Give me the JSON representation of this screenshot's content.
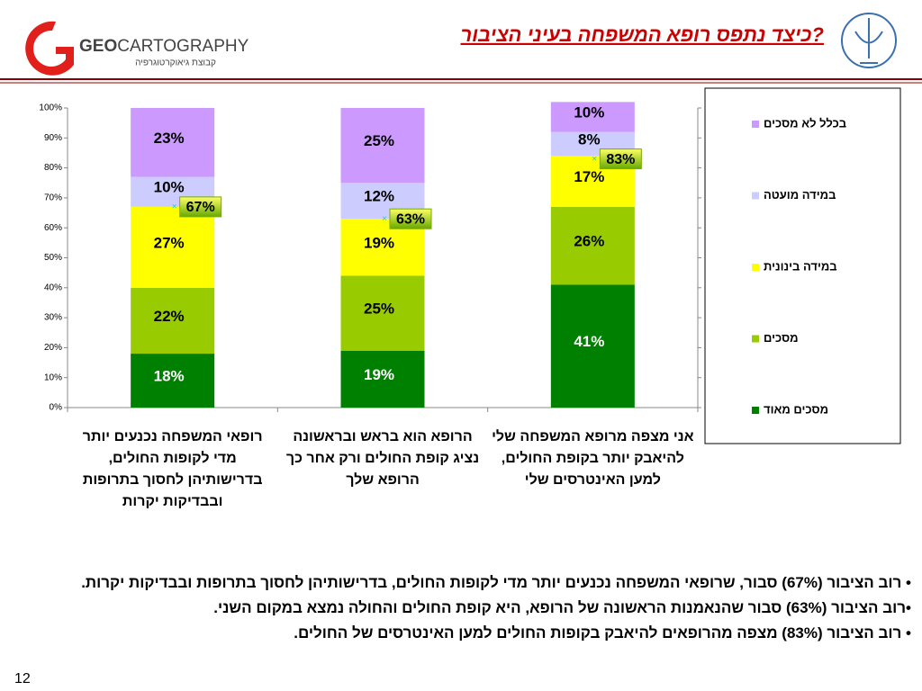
{
  "header": {
    "title": "כיצד נתפס רופא המשפחה בעיני הציבור?",
    "logo_name_bold": "GEO",
    "logo_name": "CARTOGRAPHY",
    "logo_subtitle": "קבוצת גיאוקרטוגרפיה"
  },
  "chart_data": {
    "type": "stacked_bar",
    "categories": [
      "רופאי המשפחה נכנעים יותר מדי לקופות החולים, בדרישותיהן לחסוך בתרופות ובבדיקות יקרות",
      "הרופא הוא בראש ובראשונה נציג קופת החולים ורק אחר כך הרופא שלך",
      "אני מצפה מרופא המשפחה שלי להיאבק יותר בקופת החולים, למען האינטרסים שלי"
    ],
    "series": [
      {
        "name": "מסכים מאוד",
        "color": "#008000",
        "values": [
          18,
          19,
          41
        ],
        "value_labels": [
          "18%",
          "19%",
          "41%"
        ]
      },
      {
        "name": "מסכים",
        "color": "#99cc00",
        "values": [
          22,
          25,
          26
        ],
        "value_labels": [
          "22%",
          "25%",
          "26%"
        ]
      },
      {
        "name": "במידה בינונית",
        "color": "#ffff00",
        "values": [
          27,
          19,
          17
        ],
        "value_labels": [
          "27%",
          "19%",
          "17%"
        ]
      },
      {
        "name": "במידה מועטה",
        "color": "#ccccff",
        "values": [
          10,
          12,
          8
        ],
        "value_labels": [
          "10%",
          "12%",
          "8%"
        ]
      },
      {
        "name": "בכלל לא מסכים",
        "color": "#cc99ff",
        "values": [
          23,
          25,
          10
        ],
        "value_labels": [
          "23%",
          "25%",
          "10%"
        ]
      }
    ],
    "markers": {
      "values": [
        67,
        63,
        83
      ],
      "value_labels": [
        "67%",
        "63%",
        "83%"
      ]
    },
    "ylim": [
      0,
      100
    ],
    "yticks": [
      {
        "value": 0,
        "label": "0%"
      },
      {
        "value": 10,
        "label": "10%"
      },
      {
        "value": 20,
        "label": "20%"
      },
      {
        "value": 30,
        "label": "30%"
      },
      {
        "value": 40,
        "label": "40%"
      },
      {
        "value": 50,
        "label": "50%"
      },
      {
        "value": 60,
        "label": "60%"
      },
      {
        "value": 70,
        "label": "70%"
      },
      {
        "value": 80,
        "label": "80%"
      },
      {
        "value": 90,
        "label": "90%"
      },
      {
        "value": 100,
        "label": "100%"
      }
    ],
    "legend": "right"
  },
  "bullets": [
    "• רוב הציבור (67%) סבור, שרופאי המשפחה נכנעים יותר מדי לקופות החולים, בדרישותיהן לחסוך בתרופות ובבדיקות יקרות.",
    "•רוב הציבור (63%) סבור שהנאמנות הראשונה של הרופא, היא קופת החולים והחולה נמצא במקום השני.",
    "• רוב הציבור (83%) מצפה מהרופאים להיאבק בקופות החולים למען האינטרסים של החולים."
  ],
  "page_number": "12"
}
